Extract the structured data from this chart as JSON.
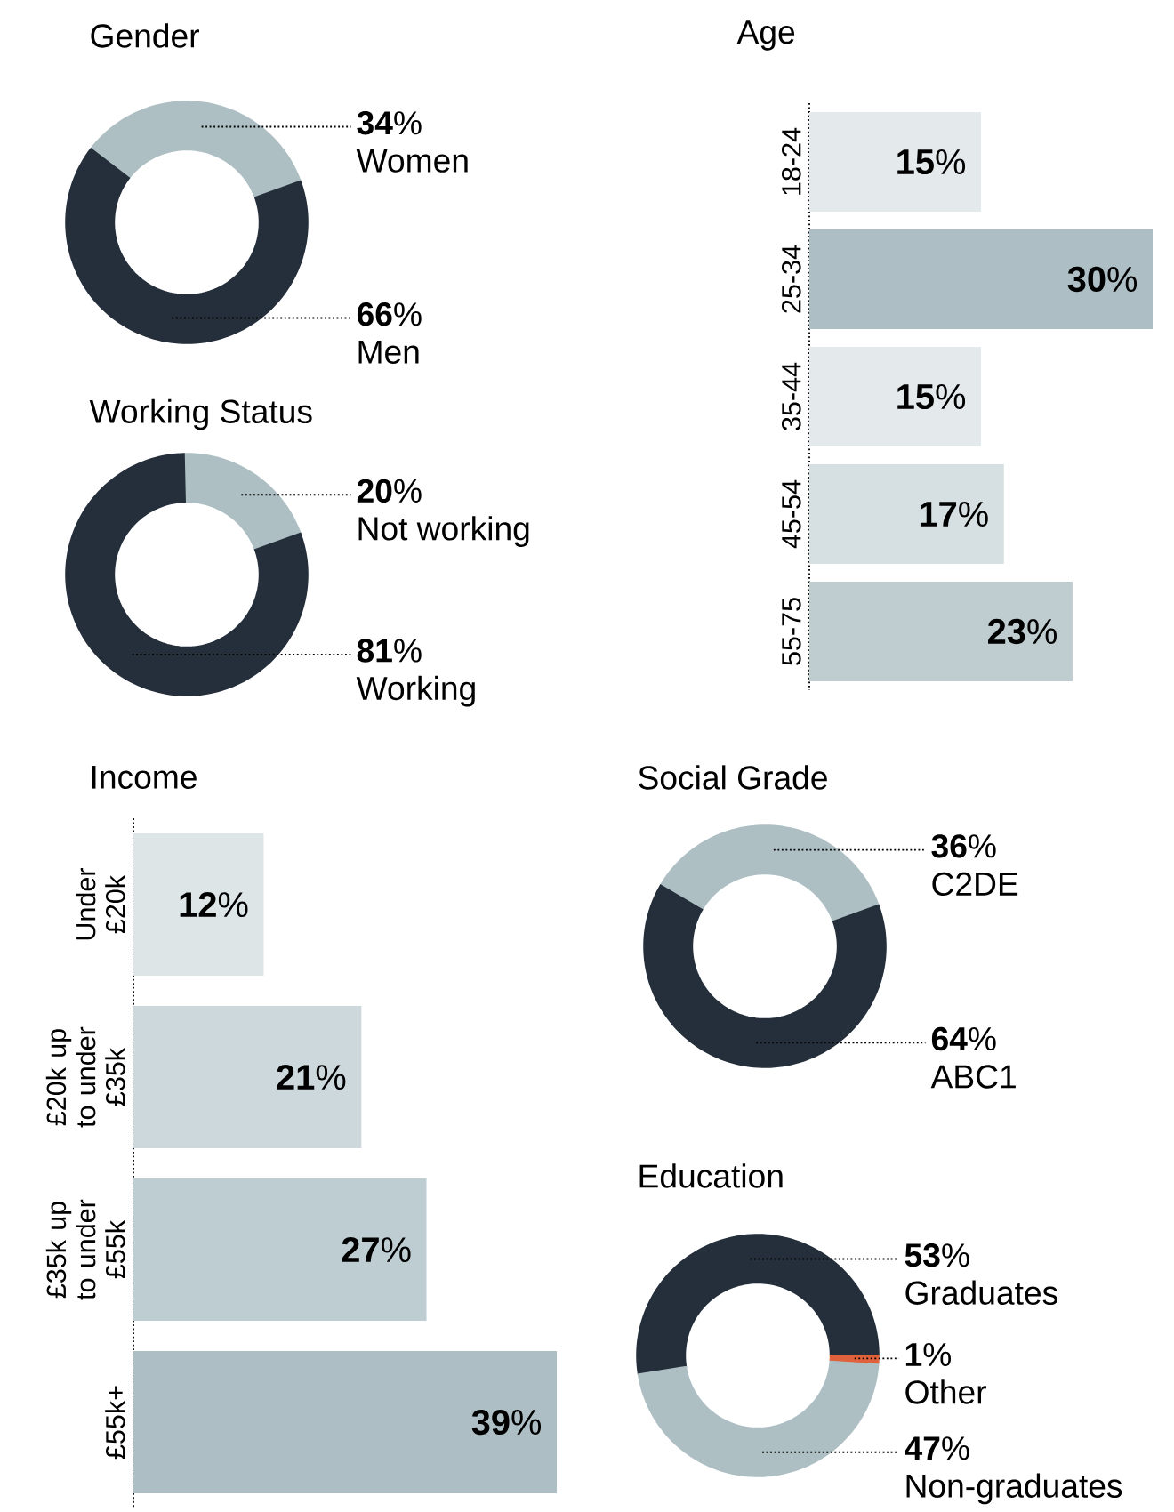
{
  "chart_data": [
    {
      "type": "donut",
      "title": "Gender",
      "categories": [
        "Women",
        "Men"
      ],
      "values": [
        34,
        66
      ],
      "colors": [
        "#aebfc4",
        "#252f3b"
      ],
      "value_labels": [
        "**34**%",
        "**66**%"
      ]
    },
    {
      "type": "bar",
      "orientation": "horizontal",
      "title": "Age",
      "categories": [
        "18-24",
        "25-34",
        "35-44",
        "45-54",
        "55-75"
      ],
      "values": [
        15,
        30,
        15,
        17,
        23
      ],
      "colors": [
        "#e4eaec",
        "#adbfc4",
        "#e4eaec",
        "#d6dfe2",
        "#bfcdd1"
      ],
      "value_labels": [
        "**15**%",
        "**30**%",
        "**15**%",
        "**17**%",
        "**23**%"
      ]
    },
    {
      "type": "donut",
      "title": "Working Status",
      "categories": [
        "Not working",
        "Working"
      ],
      "values": [
        20,
        81
      ],
      "colors": [
        "#aebfc4",
        "#252f3b"
      ],
      "value_labels": [
        "**20**%",
        "**81**%"
      ]
    },
    {
      "type": "bar",
      "orientation": "horizontal",
      "title": "Income",
      "categories": [
        "Under £20k",
        "£20k up to under £35k",
        "£35k up to under £55k",
        "£55k+"
      ],
      "values": [
        12,
        21,
        27,
        39
      ],
      "colors": [
        "#dde5e7",
        "#ccd8dc",
        "#bdcdd1",
        "#adbfc4"
      ],
      "value_labels": [
        "**12**%",
        "**21**%",
        "**27**%",
        "**39**%"
      ]
    },
    {
      "type": "donut",
      "title": "Social Grade",
      "categories": [
        "C2DE",
        "ABC1"
      ],
      "values": [
        36,
        64
      ],
      "colors": [
        "#aebfc4",
        "#252f3b"
      ],
      "value_labels": [
        "**36**%",
        "**64**%"
      ]
    },
    {
      "type": "donut",
      "title": "Education",
      "categories": [
        "Graduates",
        "Non-graduates",
        "Other"
      ],
      "values": [
        53,
        47,
        1
      ],
      "colors": [
        "#252f3b",
        "#aebfc4",
        "#e0623c"
      ],
      "value_labels": [
        "**53**%",
        "**47**%",
        "**1**%"
      ]
    }
  ]
}
